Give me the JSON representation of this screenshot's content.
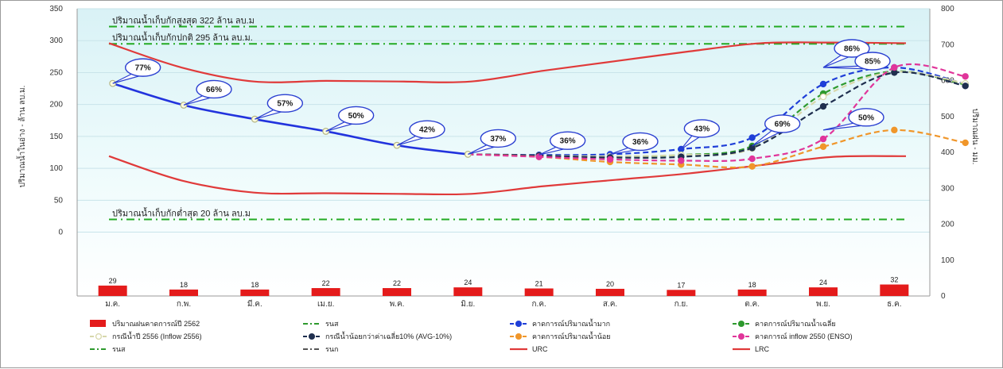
{
  "chart_data": {
    "type": "line",
    "months": [
      "ม.ค.",
      "ก.พ.",
      "มี.ค.",
      "เม.ย.",
      "พ.ค.",
      "มิ.ย.",
      "ก.ค.",
      "ส.ค.",
      "ก.ย.",
      "ต.ค.",
      "พ.ย.",
      "ธ.ค."
    ],
    "y_left": {
      "label": "ปริมาณน้ำในอ่าง - ล้าน ลบ.ม.",
      "min": 0,
      "max": 350,
      "ticks": [
        0,
        50,
        100,
        150,
        200,
        250,
        300,
        350
      ],
      "range": [
        -100,
        350
      ]
    },
    "y_right": {
      "label": "ปริมาณฝน - มม.",
      "min": 0,
      "max": 800,
      "ticks": [
        0,
        100,
        200,
        300,
        400,
        500,
        600,
        700,
        800
      ]
    },
    "reference_lines": [
      {
        "label": "ปริมาณน้ำเก็บกักสูงสุด 322 ล้าน ลบ.ม",
        "value": 322,
        "color": "#22aa22"
      },
      {
        "label": "ปริมาณน้ำเก็บกักปกติ 295 ล้าน ลบ.ม.",
        "value": 295,
        "color": "#22aa22"
      },
      {
        "label": "ปริมาณน้ำเก็บกักต่ำสุด 20 ล้าน ลบ.ม",
        "value": 20,
        "color": "#22aa22"
      }
    ],
    "rule_curves": [
      {
        "name": "URC",
        "color": "#e03a3a",
        "values": [
          296,
          258,
          236,
          237,
          236,
          236,
          253,
          268,
          283,
          296,
          297,
          296
        ]
      },
      {
        "name": "LRC",
        "color": "#e03a3a",
        "values": [
          119,
          81,
          62,
          61,
          60,
          60,
          72,
          82,
          92,
          105,
          118,
          119
        ]
      }
    ],
    "actual_storage": {
      "name": "ระดับน้ำปี 2562",
      "color": "#2233dd",
      "values": [
        233,
        199,
        177,
        158,
        136,
        122
      ],
      "percent_labels": [
        "77%",
        "66%",
        "57%",
        "50%",
        "42%",
        "37%"
      ]
    },
    "forecast_series": [
      {
        "name": "คาดการณ์ปริมาณน้ำมาก",
        "color": "#1f3fd8",
        "marker": "#1f3fd8",
        "values": [
          122,
          121,
          122,
          130,
          148,
          232,
          258,
          232
        ]
      },
      {
        "name": "คาดการณ์ปริมาณน้ำเฉลี่ย",
        "color": "#2e9a2e",
        "marker": "#2e9a2e",
        "values": [
          122,
          120,
          118,
          121,
          135,
          217,
          252,
          231
        ]
      },
      {
        "name": "กรณีน้ำปี 2556 (Inflow 2556)",
        "color": "#d7d7aa",
        "marker": "#ffffff",
        "values": [
          122,
          120,
          119,
          121,
          131,
          212,
          251,
          233
        ]
      },
      {
        "name": "กรณีน้ำน้อยกว่าค่าเฉลี่ย10% (AVG-10%)",
        "color": "#1f2f4f",
        "marker": "#1f2f4f",
        "values": [
          122,
          120,
          117,
          118,
          132,
          197,
          250,
          229
        ]
      },
      {
        "name": "คาดการณ์ปริมาณน้ำน้อย",
        "color": "#f0962a",
        "marker": "#f0962a",
        "values": [
          122,
          118,
          110,
          106,
          103,
          134,
          160,
          140
        ]
      },
      {
        "name": "คาดการณ์ inflow 2550 (ENSO)",
        "color": "#e0359a",
        "marker": "#e0359a",
        "values": [
          122,
          118,
          114,
          112,
          115,
          146,
          258,
          244
        ]
      }
    ],
    "forecast_percent_labels": [
      {
        "month_index": 7,
        "label": "36%"
      },
      {
        "month_index": 7,
        "label": "36%",
        "second": true
      },
      {
        "month_index": 8,
        "label": "43%"
      },
      {
        "month_index": 9,
        "label": "69%"
      },
      {
        "month_index": 10,
        "label": "86%"
      },
      {
        "month_index": 10,
        "label": "85%",
        "lower": true
      },
      {
        "month_index": 10,
        "label": "50%",
        "orange": true
      }
    ],
    "rainfall": {
      "name": "ปริมาณฝนคาดการณ์ปี 2562",
      "color": "#e41b1b",
      "values": [
        29,
        18,
        18,
        22,
        22,
        24,
        21,
        20,
        17,
        18,
        24,
        32
      ]
    },
    "legend": [
      {
        "text": "ปริมาณฝนคาดการณ์ปี 2562",
        "kind": "bar",
        "color": "#e41b1b"
      },
      {
        "text": "รนส",
        "kind": "dashdot",
        "color": "#2e9a2e"
      },
      {
        "text": "คาดการณ์ปริมาณน้ำมาก",
        "kind": "dashmarker",
        "color": "#1f3fd8"
      },
      {
        "text": "คาดการณ์ปริมาณน้ำเฉลี่ย",
        "kind": "dashmarker",
        "color": "#2e9a2e"
      },
      {
        "text": "กรณีน้ำปี 2556 (Inflow 2556)",
        "kind": "dashmarker-open",
        "color": "#d7d7aa"
      },
      {
        "text": "กรณีน้ำน้อยกว่าค่าเฉลี่ย10% (AVG-10%)",
        "kind": "dashmarker",
        "color": "#1f2f4f"
      },
      {
        "text": "คาดการณ์ปริมาณน้ำน้อย",
        "kind": "dashmarker",
        "color": "#f0962a"
      },
      {
        "text": "คาดการณ์ inflow 2550 (ENSO)",
        "kind": "dashmarker",
        "color": "#e0359a"
      },
      {
        "text": "รนส",
        "kind": "dashdot",
        "color": "#2e9a2e"
      },
      {
        "text": "รนก",
        "kind": "dashdot",
        "color": "#555555"
      },
      {
        "text": "URC",
        "kind": "line",
        "color": "#e03a3a"
      },
      {
        "text": "LRC",
        "kind": "line",
        "color": "#e03a3a"
      }
    ]
  }
}
